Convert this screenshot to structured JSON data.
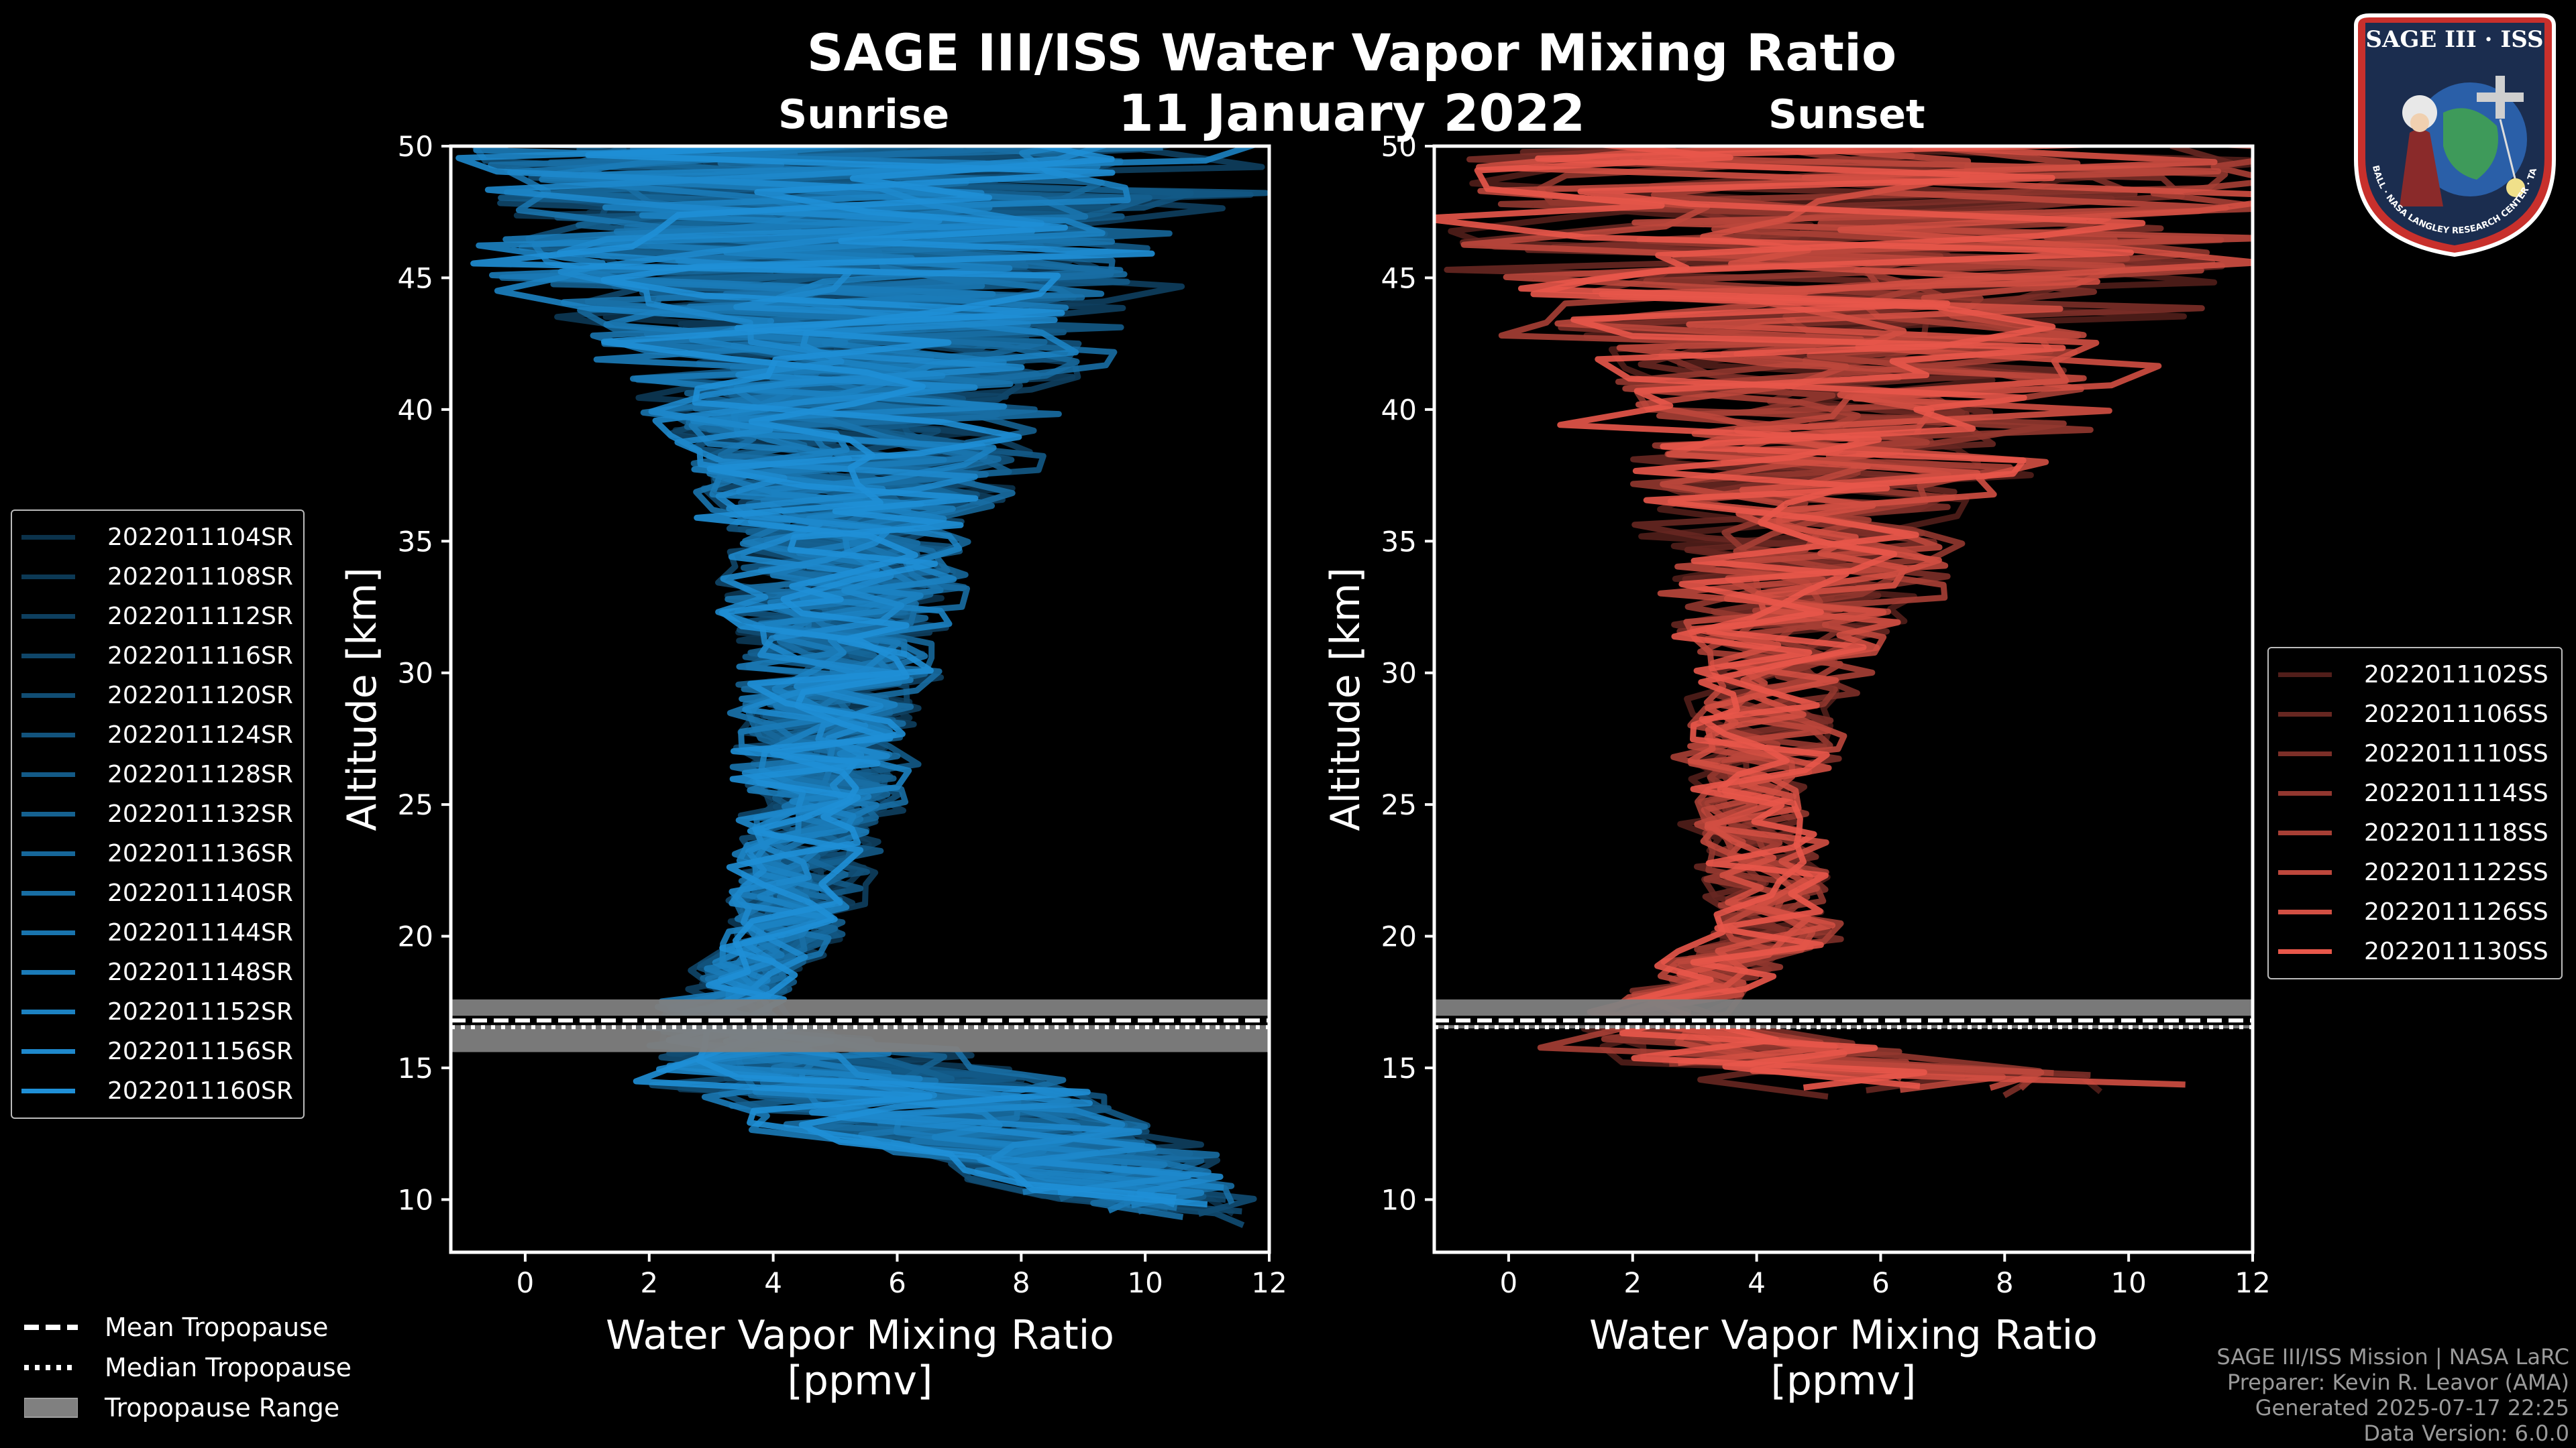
{
  "title": "SAGE III/ISS Water Vapor Mixing Ratio",
  "date": "11 January 2022",
  "panels": {
    "sunrise_label": "Sunrise",
    "sunset_label": "Sunset"
  },
  "colors": {
    "sunrise": "#1f8fd6",
    "sunset": "#e8574a",
    "tropopause_band": "#808080",
    "background": "#000000"
  },
  "chart_data": [
    {
      "type": "line",
      "panel": "Sunrise",
      "xlabel": "Water Vapor Mixing Ratio\n[ppmv]",
      "xlabel_line1": "Water Vapor Mixing Ratio",
      "xlabel_line2": "[ppmv]",
      "ylabel": "Altitude [km]",
      "xlim": [
        -1.2,
        12
      ],
      "ylim": [
        8,
        50
      ],
      "xticks": [
        0,
        2,
        4,
        6,
        8,
        10,
        12
      ],
      "yticks": [
        10,
        15,
        20,
        25,
        30,
        35,
        40,
        45,
        50
      ],
      "tropopause": {
        "mean": 16.7,
        "median": 16.7,
        "range": [
          15.6,
          17.6
        ]
      },
      "series": [
        {
          "name": "2022011104SR",
          "values": []
        },
        {
          "name": "2022011108SR",
          "values": []
        },
        {
          "name": "2022011112SR",
          "values": []
        },
        {
          "name": "2022011116SR",
          "values": []
        },
        {
          "name": "2022011120SR",
          "values": []
        },
        {
          "name": "2022011124SR",
          "values": []
        },
        {
          "name": "2022011128SR",
          "values": []
        },
        {
          "name": "2022011132SR",
          "values": []
        },
        {
          "name": "2022011136SR",
          "values": []
        },
        {
          "name": "2022011140SR",
          "values": []
        },
        {
          "name": "2022011144SR",
          "values": []
        },
        {
          "name": "2022011148SR",
          "values": []
        },
        {
          "name": "2022011152SR",
          "values": []
        },
        {
          "name": "2022011156SR",
          "values": []
        },
        {
          "name": "2022011160SR",
          "values": []
        }
      ],
      "profile_envelope": [
        {
          "alt": 9,
          "mean": 11.5,
          "spread": 1.0
        },
        {
          "alt": 13,
          "mean": 7.0,
          "spread": 3.5
        },
        {
          "alt": 15,
          "mean": 5.0,
          "spread": 3.0
        },
        {
          "alt": 17,
          "mean": 3.0,
          "spread": 1.0
        },
        {
          "alt": 20,
          "mean": 4.2,
          "spread": 0.9
        },
        {
          "alt": 25,
          "mean": 4.8,
          "spread": 1.2
        },
        {
          "alt": 30,
          "mean": 5.0,
          "spread": 1.5
        },
        {
          "alt": 35,
          "mean": 5.3,
          "spread": 2.0
        },
        {
          "alt": 40,
          "mean": 5.3,
          "spread": 3.0
        },
        {
          "alt": 45,
          "mean": 5.3,
          "spread": 5.0
        },
        {
          "alt": 50,
          "mean": 5.3,
          "spread": 6.0
        }
      ]
    },
    {
      "type": "line",
      "panel": "Sunset",
      "xlabel": "Water Vapor Mixing Ratio\n[ppmv]",
      "xlabel_line1": "Water Vapor Mixing Ratio",
      "xlabel_line2": "[ppmv]",
      "ylabel": "Altitude [km]",
      "xlim": [
        -1.2,
        12
      ],
      "ylim": [
        8,
        50
      ],
      "xticks": [
        0,
        2,
        4,
        6,
        8,
        10,
        12
      ],
      "yticks": [
        10,
        15,
        20,
        25,
        30,
        35,
        40,
        45,
        50
      ],
      "tropopause": {
        "mean": 16.7,
        "median": 16.7,
        "range": [
          16.5,
          17.6
        ]
      },
      "series": [
        {
          "name": "2022011102SS",
          "values": []
        },
        {
          "name": "2022011106SS",
          "values": []
        },
        {
          "name": "2022011110SS",
          "values": []
        },
        {
          "name": "2022011114SS",
          "values": []
        },
        {
          "name": "2022011118SS",
          "values": []
        },
        {
          "name": "2022011122SS",
          "values": []
        },
        {
          "name": "2022011126SS",
          "values": []
        },
        {
          "name": "2022011130SS",
          "values": []
        }
      ],
      "profile_envelope": [
        {
          "alt": 14,
          "mean": 8.5,
          "spread": 3.5
        },
        {
          "alt": 16,
          "mean": 3.0,
          "spread": 2.5
        },
        {
          "alt": 17,
          "mean": 2.4,
          "spread": 1.0
        },
        {
          "alt": 20,
          "mean": 4.3,
          "spread": 1.0
        },
        {
          "alt": 25,
          "mean": 3.9,
          "spread": 1.0
        },
        {
          "alt": 30,
          "mean": 4.4,
          "spread": 1.5
        },
        {
          "alt": 35,
          "mean": 5.0,
          "spread": 2.5
        },
        {
          "alt": 40,
          "mean": 5.5,
          "spread": 4.0
        },
        {
          "alt": 45,
          "mean": 6.0,
          "spread": 6.0
        },
        {
          "alt": 50,
          "mean": 6.0,
          "spread": 6.5
        }
      ]
    }
  ],
  "tropopause_legend": {
    "mean": "Mean Tropopause",
    "median": "Median Tropopause",
    "range": "Tropopause Range"
  },
  "footer": {
    "line1": "SAGE III/ISS Mission | NASA LaRC",
    "line2": "Preparer: Kevin R. Leavor (AMA)",
    "line3": "Generated 2025-07-17 22:25",
    "line4": "Data Version: 6.0.0"
  },
  "logo": {
    "name": "SAGE III · ISS",
    "ring_text": "BALL · NASA LANGLEY RESEARCH CENTER · TAS-I · ESA"
  }
}
